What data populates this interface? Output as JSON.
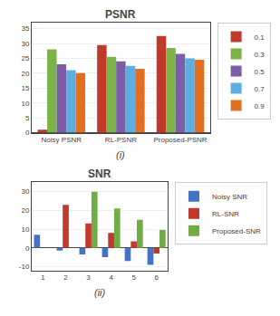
{
  "chart_data": [
    {
      "type": "bar",
      "title": "PSNR",
      "categories": [
        "Noisy PSNR",
        "RL-PSNR",
        "Proposed-PSNR"
      ],
      "series": [
        {
          "name": "0.1",
          "color": "#c0392b",
          "values": [
            1.0,
            29.5,
            32.5
          ]
        },
        {
          "name": "0.3",
          "color": "#7cb347",
          "values": [
            28.0,
            25.5,
            28.5
          ]
        },
        {
          "name": "0.5",
          "color": "#7b5ea7",
          "values": [
            23.0,
            24.0,
            26.5
          ]
        },
        {
          "name": "0.7",
          "color": "#5dade2",
          "values": [
            21.0,
            22.5,
            25.0
          ]
        },
        {
          "name": "0.9",
          "color": "#e07020",
          "values": [
            20.0,
            21.5,
            24.5
          ]
        }
      ],
      "ylim": [
        0,
        37
      ],
      "yticks": [
        0,
        5,
        10,
        15,
        20,
        25,
        30,
        35
      ],
      "grid": true,
      "legend": "right",
      "annotations": [
        "(i)"
      ]
    },
    {
      "type": "bar",
      "title": "SNR",
      "categories": [
        "1",
        "2",
        "3",
        "4",
        "5",
        "6"
      ],
      "series": [
        {
          "name": "Noisy SNR",
          "color": "#4472c4",
          "values": [
            7.0,
            -1.5,
            -3.5,
            -5.0,
            -7.0,
            -9.0
          ]
        },
        {
          "name": "RL-SNR",
          "color": "#c0392b",
          "values": [
            0.0,
            23.0,
            13.0,
            8.0,
            3.5,
            -3.0
          ]
        },
        {
          "name": "Proposed-SNR",
          "color": "#70ad47",
          "values": [
            0.0,
            0.0,
            30.0,
            21.0,
            15.0,
            9.5
          ]
        }
      ],
      "ylim": [
        -12,
        35
      ],
      "yticks": [
        -10,
        0,
        10,
        20,
        30
      ],
      "grid": true,
      "legend": "right",
      "annotations": [
        "(ii)"
      ]
    }
  ]
}
